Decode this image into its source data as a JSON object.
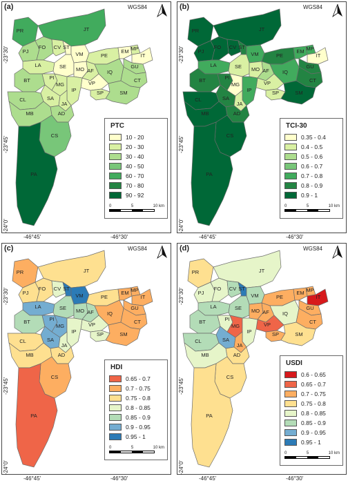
{
  "panels": [
    {
      "label": "(a)",
      "crs": "WGS84",
      "legend_title": "PTC",
      "legend": [
        {
          "range": "10 - 20",
          "color": "#ffffcc"
        },
        {
          "range": "20 - 30",
          "color": "#d9f0a3"
        },
        {
          "range": "30 - 40",
          "color": "#addd8e"
        },
        {
          "range": "40 - 50",
          "color": "#78c679"
        },
        {
          "range": "60 - 70",
          "color": "#41ab5d"
        },
        {
          "range": "70 - 80",
          "color": "#238443"
        },
        {
          "range": "90 - 92",
          "color": "#006837"
        }
      ],
      "districts": {
        "PR": "#41ab5d",
        "PJ": "#addd8e",
        "FO": "#addd8e",
        "JT": "#41ab5d",
        "CV": "#d9f0a3",
        "ST": "#ffffcc",
        "VM": "#ffffcc",
        "PE": "#d9f0a3",
        "EM": "#ffffcc",
        "MP": "#d9f0a3",
        "IT": "#ffffcc",
        "LA": "#d9f0a3",
        "SE": "#ffffcc",
        "MO": "#ffffcc",
        "AF": "#d9f0a3",
        "IQ": "#addd8e",
        "GU": "#addd8e",
        "CT": "#addd8e",
        "BT": "#addd8e",
        "PI": "#d9f0a3",
        "MG": "#d9f0a3",
        "VP": "#ffffcc",
        "SP": "#d9f0a3",
        "SM": "#addd8e",
        "IP": "#d9f0a3",
        "SA": "#d9f0a3",
        "JA": "#d9f0a3",
        "CL": "#addd8e",
        "AD": "#addd8e",
        "MB": "#addd8e",
        "CS": "#78c679",
        "PA": "#006837"
      }
    },
    {
      "label": "(b)",
      "crs": "WGS84",
      "legend_title": "TCI-30",
      "legend": [
        {
          "range": "0.35 - 0.4",
          "color": "#ffffcc"
        },
        {
          "range": "0.4 - 0.5",
          "color": "#d9f0a3"
        },
        {
          "range": "0.5 - 0.6",
          "color": "#addd8e"
        },
        {
          "range": "0.6 - 0.7",
          "color": "#78c679"
        },
        {
          "range": "0.7 - 0.8",
          "color": "#41ab5d"
        },
        {
          "range": "0.8 - 0.9",
          "color": "#238443"
        },
        {
          "range": "0.9 - 1",
          "color": "#006837"
        }
      ],
      "districts": {
        "PR": "#006837",
        "PJ": "#006837",
        "FO": "#006837",
        "JT": "#006837",
        "CV": "#006837",
        "ST": "#238443",
        "VM": "#41ab5d",
        "PE": "#238443",
        "EM": "#41ab5d",
        "MP": "#41ab5d",
        "IT": "#ffffcc",
        "LA": "#41ab5d",
        "SE": "#d9f0a3",
        "MO": "#d9f0a3",
        "AF": "#addd8e",
        "IQ": "#41ab5d",
        "GU": "#238443",
        "CT": "#238443",
        "BT": "#238443",
        "PI": "#238443",
        "MG": "#ffffcc",
        "VP": "#d9f0a3",
        "SP": "#d9f0a3",
        "SM": "#006837",
        "IP": "#41ab5d",
        "SA": "#238443",
        "JA": "#d9f0a3",
        "CL": "#006837",
        "AD": "#238443",
        "MB": "#006837",
        "CS": "#006837",
        "PA": "#006837"
      }
    },
    {
      "label": "(c)",
      "crs": "WGS84",
      "legend_title": "HDI",
      "legend": [
        {
          "range": "0.65 - 0.7",
          "color": "#ef6548"
        },
        {
          "range": "0.7 - 0.75",
          "color": "#fdae61"
        },
        {
          "range": "0.75 - 0.8",
          "color": "#fee090"
        },
        {
          "range": "0.8 - 0.85",
          "color": "#e6f5c9"
        },
        {
          "range": "0.85 - 0.9",
          "color": "#b3dcb7"
        },
        {
          "range": "0.9 - 0.95",
          "color": "#74add1"
        },
        {
          "range": "0.95 - 1",
          "color": "#2c7bb6"
        }
      ],
      "districts": {
        "PR": "#fdae61",
        "PJ": "#fee090",
        "FO": "#fee090",
        "JT": "#fee090",
        "CV": "#e6f5c9",
        "ST": "#2c7bb6",
        "VM": "#2c7bb6",
        "PE": "#fee090",
        "EM": "#fdae61",
        "MP": "#fdae61",
        "IT": "#fdae61",
        "LA": "#74add1",
        "SE": "#b3dcb7",
        "MO": "#b3dcb7",
        "AF": "#b3dcb7",
        "IQ": "#fdae61",
        "GU": "#fdae61",
        "CT": "#fdae61",
        "BT": "#b3dcb7",
        "PI": "#74add1",
        "MG": "#74add1",
        "VP": "#e6f5c9",
        "SP": "#e6f5c9",
        "SM": "#fdae61",
        "IP": "#e6f5c9",
        "SA": "#74add1",
        "JA": "#e6f5c9",
        "CL": "#fee090",
        "AD": "#fee090",
        "MB": "#fee090",
        "CS": "#fdae61",
        "PA": "#ef6548"
      }
    },
    {
      "label": "(d)",
      "crs": "WGS84",
      "legend_title": "USDI",
      "legend": [
        {
          "range": "0.6 - 0.65",
          "color": "#d7191c"
        },
        {
          "range": "0.65 - 0.7",
          "color": "#ef6548"
        },
        {
          "range": "0.7 - 0.75",
          "color": "#fdae61"
        },
        {
          "range": "0.75 - 0.8",
          "color": "#fee090"
        },
        {
          "range": "0.8 - 0.85",
          "color": "#e6f5c9"
        },
        {
          "range": "0.85 - 0.9",
          "color": "#b3dcb7"
        },
        {
          "range": "0.9 - 0.95",
          "color": "#74add1"
        },
        {
          "range": "0.95 - 1",
          "color": "#2c7bb6"
        }
      ],
      "districts": {
        "PR": "#fee090",
        "PJ": "#e6f5c9",
        "FO": "#e6f5c9",
        "JT": "#e6f5c9",
        "CV": "#b3dcb7",
        "ST": "#2c7bb6",
        "VM": "#b3dcb7",
        "PE": "#fdae61",
        "EM": "#fdae61",
        "MP": "#fdae61",
        "IT": "#d7191c",
        "LA": "#b3dcb7",
        "SE": "#b3dcb7",
        "MO": "#fdae61",
        "AF": "#fdae61",
        "IQ": "#e6f5c9",
        "GU": "#fdae61",
        "CT": "#fdae61",
        "BT": "#b3dcb7",
        "PI": "#e6f5c9",
        "MG": "#ef6548",
        "VP": "#ef6548",
        "SP": "#fdae61",
        "SM": "#fee090",
        "IP": "#e6f5c9",
        "SA": "#74add1",
        "JA": "#fdae61",
        "CL": "#b3dcb7",
        "AD": "#fee090",
        "MB": "#e6f5c9",
        "CS": "#fee090",
        "PA": "#fee090"
      }
    }
  ],
  "scale": {
    "ticks": [
      "0",
      "5",
      "10 km"
    ]
  },
  "coords": {
    "lat1": "-23°30'",
    "lat2": "-23°45'",
    "lat3": "-24°0'",
    "lon1": "-46°45'",
    "lon2": "-46°30'"
  }
}
